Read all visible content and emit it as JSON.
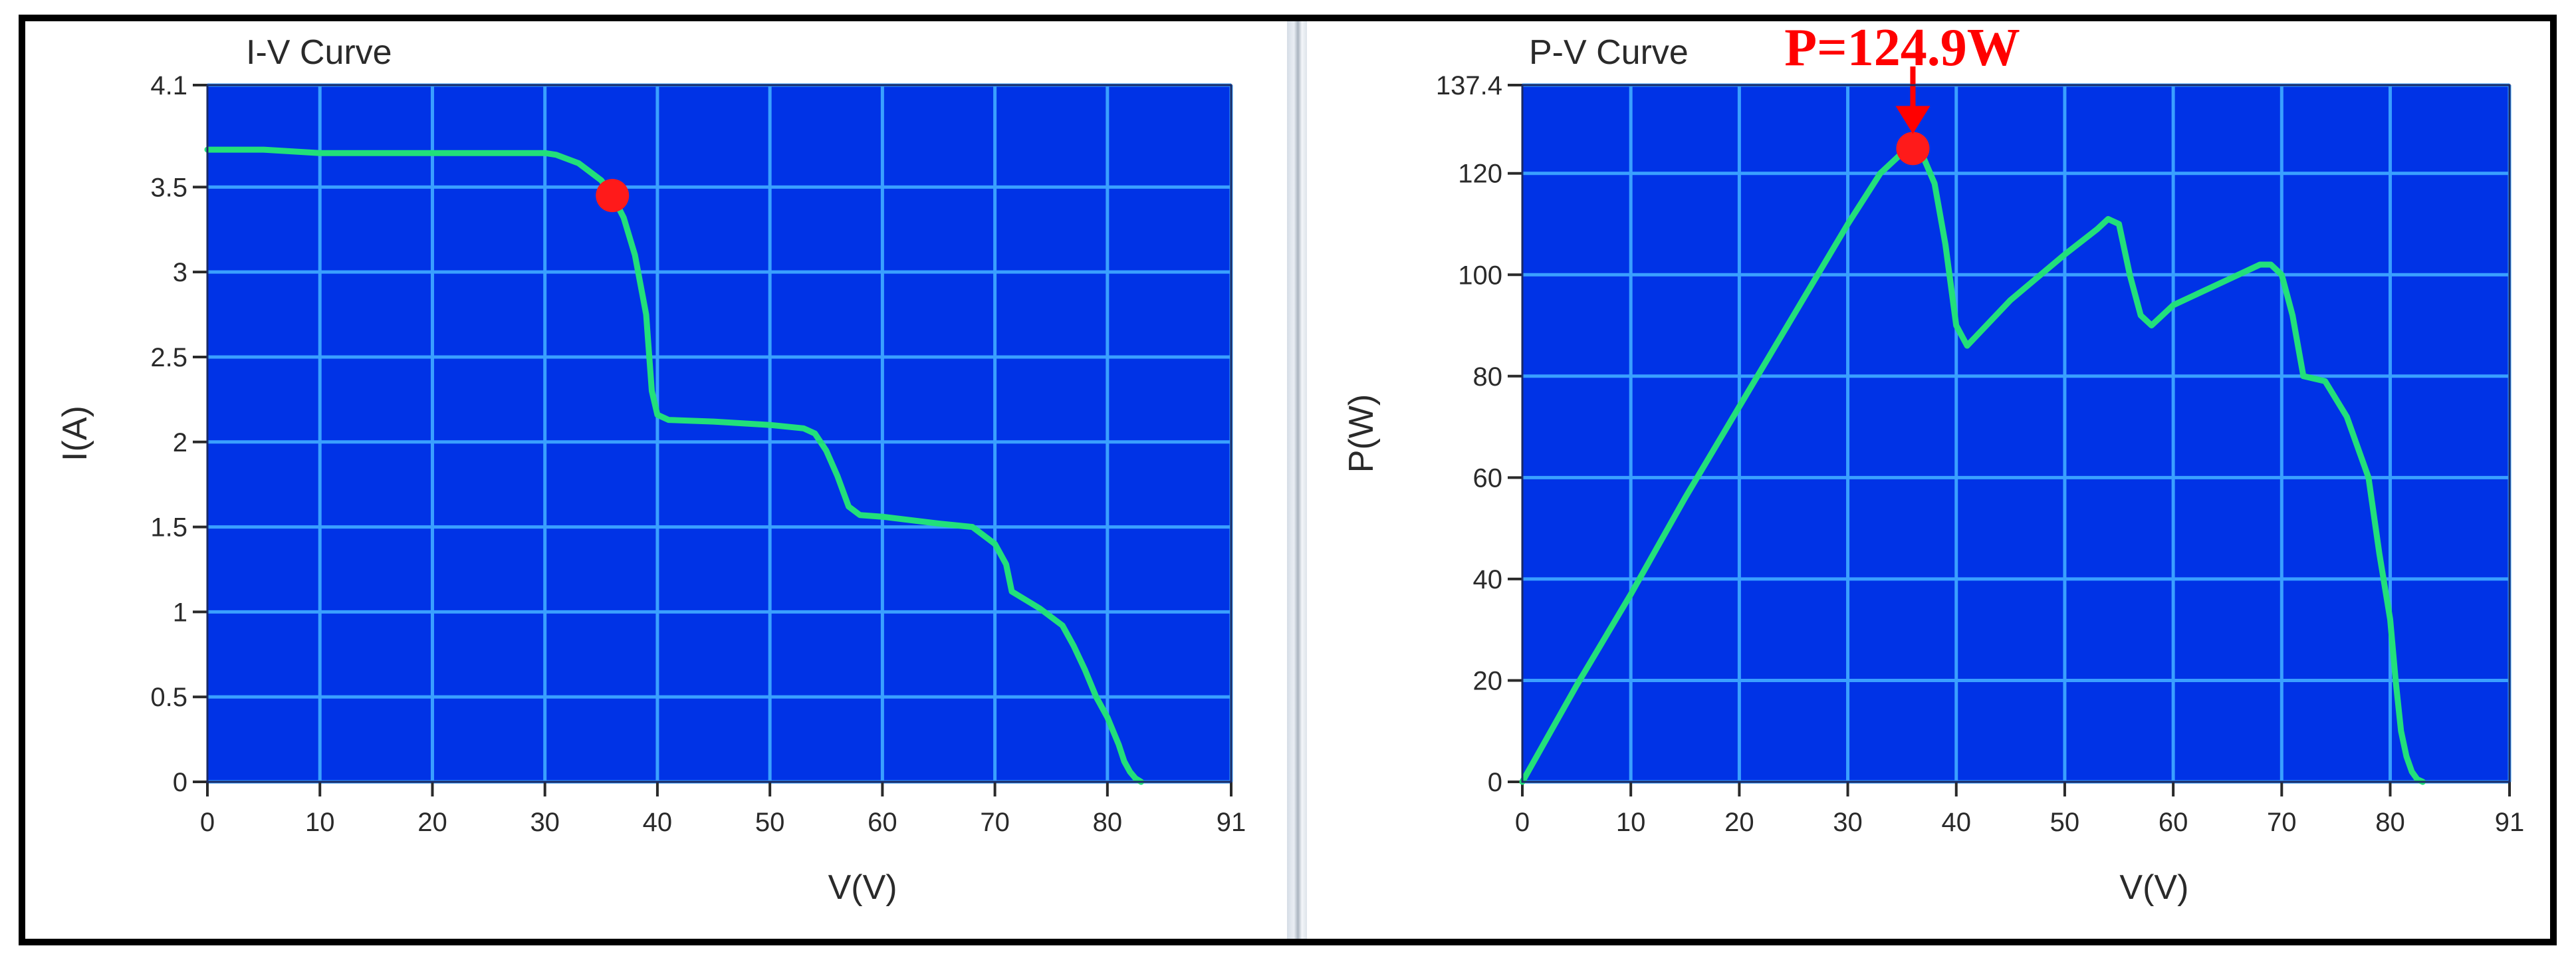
{
  "colors": {
    "plot_bg": "#0033e6",
    "grid": "#3aa0ff",
    "curve": "#22e07a",
    "marker": "#ff1a1a",
    "annotation": "#ff0000",
    "panel_bg": "#ffffff",
    "text": "#2a2a2a"
  },
  "chart_data": [
    {
      "type": "line",
      "title": "I-V Curve",
      "xlabel": "V(V)",
      "ylabel": "I(A)",
      "xlim": [
        0,
        91
      ],
      "ylim": [
        0,
        4.1
      ],
      "xticks": [
        0,
        10,
        20,
        30,
        40,
        50,
        60,
        70,
        80,
        91
      ],
      "xtick_labels": [
        "0",
        "10",
        "20",
        "30",
        "40",
        "50",
        "60",
        "70",
        "80",
        "91"
      ],
      "yticks": [
        0,
        0.5,
        1,
        1.5,
        2,
        2.5,
        3,
        3.5,
        4.1
      ],
      "ytick_labels": [
        "0",
        "0.5",
        "1",
        "1.5",
        "2",
        "2.5",
        "3",
        "3.5",
        "4.1"
      ],
      "grid": true,
      "series": [
        {
          "x": [
            0,
            5,
            10,
            20,
            30,
            31,
            33,
            35,
            36,
            37,
            38,
            39,
            39.5,
            40,
            41,
            45,
            50,
            53,
            54,
            55,
            56,
            57,
            58,
            60,
            65,
            68,
            70,
            71,
            71.5,
            72,
            74,
            76,
            77,
            78,
            79,
            80,
            81,
            81.5,
            82,
            82.5,
            83
          ],
          "y": [
            3.72,
            3.72,
            3.7,
            3.7,
            3.7,
            3.69,
            3.64,
            3.54,
            3.45,
            3.32,
            3.1,
            2.75,
            2.3,
            2.16,
            2.13,
            2.12,
            2.1,
            2.08,
            2.05,
            1.95,
            1.8,
            1.62,
            1.57,
            1.56,
            1.52,
            1.5,
            1.4,
            1.28,
            1.12,
            1.1,
            1.02,
            0.92,
            0.8,
            0.66,
            0.5,
            0.38,
            0.22,
            0.12,
            0.06,
            0.02,
            0
          ]
        }
      ],
      "marker": {
        "x": 36,
        "y": 3.45
      }
    },
    {
      "type": "line",
      "title": "P-V Curve",
      "xlabel": "V(V)",
      "ylabel": "P(W)",
      "xlim": [
        0,
        91
      ],
      "ylim": [
        0,
        137.4
      ],
      "xticks": [
        0,
        10,
        20,
        30,
        40,
        50,
        60,
        70,
        80,
        91
      ],
      "xtick_labels": [
        "0",
        "10",
        "20",
        "30",
        "40",
        "50",
        "60",
        "70",
        "80",
        "91"
      ],
      "yticks": [
        0,
        20,
        40,
        60,
        80,
        100,
        120,
        137.4
      ],
      "ytick_labels": [
        "0",
        "20",
        "40",
        "60",
        "80",
        "100",
        "120",
        "137.4"
      ],
      "grid": true,
      "series": [
        {
          "x": [
            0,
            5,
            10,
            15,
            20,
            25,
            30,
            33,
            35,
            36,
            37,
            38,
            39,
            40,
            41,
            45,
            50,
            53,
            54,
            55,
            56,
            57,
            58,
            60,
            65,
            68,
            69,
            70,
            71,
            72,
            74,
            76,
            78,
            79,
            80,
            80.5,
            81,
            81.5,
            82,
            82.5,
            83
          ],
          "y": [
            0,
            19,
            37,
            56,
            74,
            92,
            110,
            120,
            124,
            124.9,
            123,
            118,
            106,
            90,
            86,
            95,
            104,
            109,
            111,
            110,
            100,
            92,
            90,
            94,
            99,
            102,
            102,
            100,
            92,
            80,
            79,
            72,
            60,
            45,
            32,
            20,
            10,
            5,
            2,
            0.5,
            0
          ]
        }
      ],
      "marker": {
        "x": 36,
        "y": 124.9
      },
      "annotation": {
        "text": "P=124.9W",
        "x": 36,
        "y": 124.9
      }
    }
  ]
}
